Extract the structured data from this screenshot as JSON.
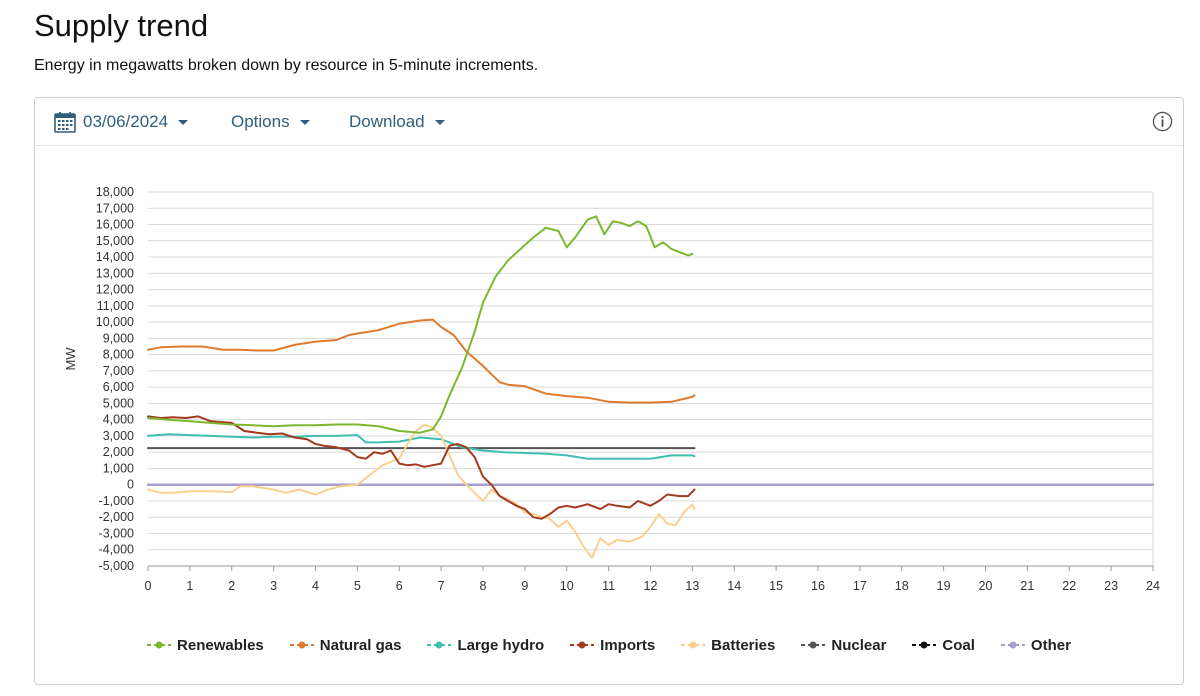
{
  "header": {
    "title": "Supply trend",
    "subtitle": "Energy in megawatts broken down by resource in 5-minute increments."
  },
  "toolbar": {
    "date": "03/06/2024",
    "options_label": "Options",
    "download_label": "Download",
    "info_icon": "info-icon"
  },
  "colors": {
    "renewables": "#7cb82f",
    "natural_gas": "#e07a2e",
    "large_hydro": "#3fbfae",
    "imports": "#a33a1f",
    "batteries": "#f9d08f",
    "nuclear": "#555555",
    "coal": "#111111",
    "other": "#a79fcf"
  },
  "chart_data": {
    "type": "line",
    "title": "",
    "xlabel": "",
    "ylabel": "MW",
    "xlim": [
      0,
      24
    ],
    "ylim": [
      -5000,
      18000
    ],
    "x_ticks": [
      "0",
      "1",
      "2",
      "3",
      "4",
      "5",
      "6",
      "7",
      "8",
      "9",
      "10",
      "11",
      "12",
      "13",
      "14",
      "15",
      "16",
      "17",
      "18",
      "19",
      "20",
      "21",
      "22",
      "23",
      "24"
    ],
    "y_ticks": [
      "18,000",
      "17,000",
      "16,000",
      "15,000",
      "14,000",
      "13,000",
      "12,000",
      "11,000",
      "10,000",
      "9,000",
      "8,000",
      "7,000",
      "6,000",
      "5,000",
      "4,000",
      "3,000",
      "2,000",
      "1,000",
      "0",
      "-1,000",
      "-2,000",
      "-3,000",
      "-4,000",
      "-5,000"
    ],
    "grid": true,
    "legend_position": "bottom",
    "series": [
      {
        "key": "renewables",
        "name": "Renewables",
        "x": [
          0,
          0.5,
          1,
          1.5,
          2,
          2.5,
          3,
          3.5,
          4,
          4.5,
          5,
          5.5,
          6,
          6.5,
          6.8,
          7,
          7.2,
          7.5,
          7.8,
          8,
          8.3,
          8.6,
          8.9,
          9.2,
          9.5,
          9.8,
          10,
          10.2,
          10.5,
          10.7,
          10.9,
          11.1,
          11.3,
          11.5,
          11.7,
          11.9,
          12.1,
          12.3,
          12.5,
          12.7,
          12.9,
          13.0
        ],
        "y": [
          4100,
          4000,
          3900,
          3800,
          3700,
          3650,
          3600,
          3650,
          3650,
          3700,
          3700,
          3600,
          3300,
          3200,
          3400,
          4200,
          5500,
          7200,
          9400,
          11200,
          12800,
          13800,
          14500,
          15200,
          15800,
          15600,
          14600,
          15200,
          16300,
          16500,
          15400,
          16200,
          16100,
          15900,
          16200,
          15900,
          14600,
          14900,
          14500,
          14300,
          14100,
          14200
        ]
      },
      {
        "key": "natural_gas",
        "name": "Natural gas",
        "x": [
          0,
          0.3,
          0.8,
          1.3,
          1.8,
          2.2,
          2.6,
          3,
          3.5,
          4,
          4.5,
          4.8,
          5,
          5.5,
          6,
          6.5,
          6.8,
          7,
          7.3,
          7.6,
          8,
          8.4,
          8.6,
          9,
          9.5,
          10,
          10.5,
          11,
          11.5,
          12,
          12.5,
          13,
          13.05
        ],
        "y": [
          8300,
          8450,
          8500,
          8500,
          8300,
          8300,
          8250,
          8250,
          8600,
          8800,
          8900,
          9200,
          9300,
          9500,
          9900,
          10100,
          10150,
          9700,
          9200,
          8200,
          7300,
          6300,
          6150,
          6050,
          5600,
          5450,
          5350,
          5100,
          5050,
          5050,
          5100,
          5400,
          5500
        ]
      },
      {
        "key": "large_hydro",
        "name": "Large hydro",
        "x": [
          0,
          0.5,
          1,
          1.5,
          2,
          2.5,
          3,
          3.5,
          4,
          4.5,
          5,
          5.2,
          5.5,
          6,
          6.5,
          7,
          7.5,
          8,
          8.5,
          9,
          9.5,
          10,
          10.5,
          11,
          11.5,
          12,
          12.5,
          13,
          13.05
        ],
        "y": [
          3000,
          3100,
          3050,
          3000,
          2950,
          2900,
          2950,
          2950,
          3000,
          3000,
          3050,
          2600,
          2600,
          2650,
          2900,
          2800,
          2300,
          2100,
          2000,
          1950,
          1900,
          1800,
          1600,
          1600,
          1600,
          1600,
          1800,
          1800,
          1750
        ]
      },
      {
        "key": "imports",
        "name": "Imports",
        "x": [
          0,
          0.3,
          0.6,
          0.9,
          1.2,
          1.5,
          2,
          2.3,
          2.6,
          2.9,
          3.2,
          3.5,
          3.8,
          4,
          4.2,
          4.5,
          4.8,
          5,
          5.2,
          5.4,
          5.6,
          5.8,
          6,
          6.2,
          6.4,
          6.6,
          6.8,
          7,
          7.2,
          7.4,
          7.6,
          7.8,
          8,
          8.2,
          8.4,
          8.6,
          8.8,
          9,
          9.2,
          9.4,
          9.6,
          9.8,
          10,
          10.2,
          10.5,
          10.8,
          11,
          11.2,
          11.5,
          11.7,
          12,
          12.2,
          12.4,
          12.7,
          12.9,
          13.05
        ],
        "y": [
          4200,
          4100,
          4150,
          4100,
          4200,
          3900,
          3800,
          3300,
          3200,
          3100,
          3150,
          2900,
          2800,
          2500,
          2400,
          2300,
          2100,
          1700,
          1600,
          2000,
          1900,
          2100,
          1300,
          1200,
          1250,
          1100,
          1200,
          1300,
          2400,
          2500,
          2300,
          1700,
          500,
          0,
          -700,
          -1000,
          -1300,
          -1500,
          -2000,
          -2100,
          -1800,
          -1400,
          -1300,
          -1400,
          -1200,
          -1500,
          -1200,
          -1300,
          -1400,
          -1000,
          -1300,
          -1000,
          -600,
          -700,
          -700,
          -300
        ]
      },
      {
        "key": "batteries",
        "name": "Batteries",
        "x": [
          0,
          0.3,
          0.6,
          1,
          1.5,
          2,
          2.2,
          2.5,
          3,
          3.3,
          3.6,
          4,
          4.3,
          4.6,
          5,
          5.3,
          5.6,
          6,
          6.2,
          6.4,
          6.6,
          6.8,
          7,
          7.2,
          7.4,
          7.6,
          7.8,
          8,
          8.2,
          8.4,
          8.6,
          8.8,
          9,
          9.2,
          9.4,
          9.6,
          9.8,
          10,
          10.2,
          10.4,
          10.6,
          10.8,
          11,
          11.2,
          11.5,
          11.8,
          12,
          12.2,
          12.4,
          12.6,
          12.8,
          13,
          13.05
        ],
        "y": [
          -300,
          -500,
          -500,
          -400,
          -400,
          -450,
          -100,
          -100,
          -300,
          -500,
          -300,
          -600,
          -300,
          -100,
          0,
          600,
          1200,
          1600,
          2500,
          3300,
          3700,
          3500,
          3000,
          1800,
          600,
          0,
          -500,
          -1000,
          -300,
          -700,
          -900,
          -1200,
          -1700,
          -1800,
          -2000,
          -2100,
          -2600,
          -2200,
          -2900,
          -3800,
          -4500,
          -3300,
          -3700,
          -3400,
          -3500,
          -3200,
          -2600,
          -1800,
          -2400,
          -2500,
          -1700,
          -1200,
          -1500
        ]
      },
      {
        "key": "nuclear",
        "name": "Nuclear",
        "x": [
          0,
          13.05
        ],
        "y": [
          2250,
          2250
        ]
      },
      {
        "key": "coal",
        "name": "Coal",
        "x": [
          0,
          24
        ],
        "y": [
          0,
          0
        ]
      },
      {
        "key": "other",
        "name": "Other",
        "x": [
          0,
          24
        ],
        "y": [
          0,
          0
        ]
      }
    ]
  }
}
